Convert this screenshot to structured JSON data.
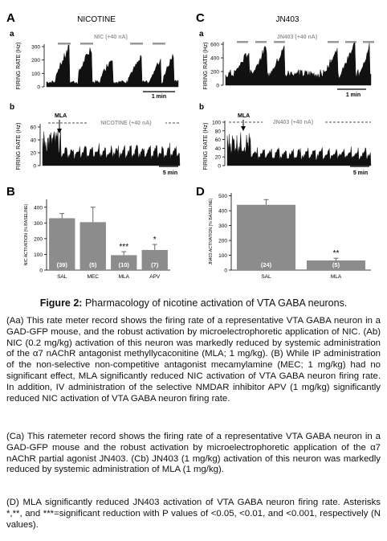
{
  "figure": {
    "panel_a": {
      "letter": "A",
      "title": "NICOTINE",
      "sub_a": "a",
      "sub_b": "b",
      "a_stim_label": "NIC (+40 nA)",
      "a_ylabel": "FIRING RATE (Hz)",
      "a_yticks": [
        "300",
        "200",
        "100",
        "0"
      ],
      "a_scale": "1 min",
      "b_drug": "MLA",
      "b_stim_label": "NICOTINE (+40 nA)",
      "b_ylabel": "FIRING RATE (Hz)",
      "b_yticks": [
        "60",
        "40",
        "20",
        "0"
      ],
      "b_scale": "5 min"
    },
    "panel_c": {
      "letter": "C",
      "title": "JN403",
      "sub_a": "a",
      "sub_b": "b",
      "a_stim_label": "JN403 (+40 nA)",
      "a_ylabel": "FIRING RATE (Hz)",
      "a_yticks": [
        "600",
        "400",
        "200",
        "0"
      ],
      "a_scale": "1 min",
      "b_drug": "MLA",
      "b_stim_label": "JN403 (+40 nA)",
      "b_ylabel": "FIRING RATE (Hz)",
      "b_yticks": [
        "100",
        "80",
        "60",
        "40",
        "20",
        "0"
      ],
      "b_scale": "5 min"
    }
  },
  "chart_data": [
    {
      "type": "bar",
      "panel": "B",
      "ylabel": "NIC ACTIVATION (% BASELINE)",
      "categories": [
        "SAL",
        "MEC",
        "MLA",
        "APV"
      ],
      "values": [
        330,
        305,
        95,
        128
      ],
      "errors": [
        30,
        95,
        22,
        35
      ],
      "n_labels": [
        "(39)",
        "(5)",
        "(10)",
        "(7)"
      ],
      "significance": [
        "",
        "",
        "***",
        "*"
      ],
      "yticks": [
        "400",
        "300",
        "200",
        "100",
        "0"
      ],
      "ylim": [
        0,
        450
      ]
    },
    {
      "type": "bar",
      "panel": "D",
      "ylabel": "JN403 ACTIVATION (% BASELINE)",
      "categories": [
        "SAL",
        "MLA"
      ],
      "values": [
        440,
        65
      ],
      "errors": [
        35,
        15
      ],
      "n_labels": [
        "(24)",
        "(5)"
      ],
      "significance": [
        "",
        "**"
      ],
      "yticks": [
        "500",
        "400",
        "300",
        "200",
        "100",
        "0"
      ],
      "ylim": [
        0,
        520
      ]
    }
  ],
  "caption": {
    "title_bold": "Figure 2:",
    "title_rest": " Pharmacology of nicotine activation of VTA GABA neurons.",
    "p1": "(Aa) This rate meter record shows the firing rate of a representative VTA GABA neuron in a GAD-GFP mouse, and the robust activation by microelectrophoretic application of NIC. (Ab) NIC (0.2 mg/kg) activation of this neuron was markedly reduced by systemic administration of the α7 nAChR antagonist methyllycaconitine (MLA; 1 mg/kg). (B) While IP administration of the non-selective non-competitive antagonist mecamylamine (MEC; 1 mg/kg) had no significant effect, MLA significantly reduced NIC activation of VTA GABA neuron firing rate. In addition, IV administration of the selective NMDAR inhibitor APV (1 mg/kg) significantly reduced NIC activation of VTA GABA neuron firing rate.",
    "p2": "(Ca) This ratemeter record shows the firing rate of a representative VTA GABA neuron in a GAD-GFP mouse and the robust activation by microelectrophoretic application of the α7 nAChR partial agonist JN403. (Cb) JN403 (1 mg/kg) activation of this neuron was markedly reduced by systemic administration of MLA (1 mg/kg).",
    "p3": "(D) MLA significantly reduced JN403 activation of VTA GABA neuron firing rate. Asterisks *,**, and ***=significant reduction with P values of <0.05, <0.01, and <0.001, respectively (N values)."
  }
}
